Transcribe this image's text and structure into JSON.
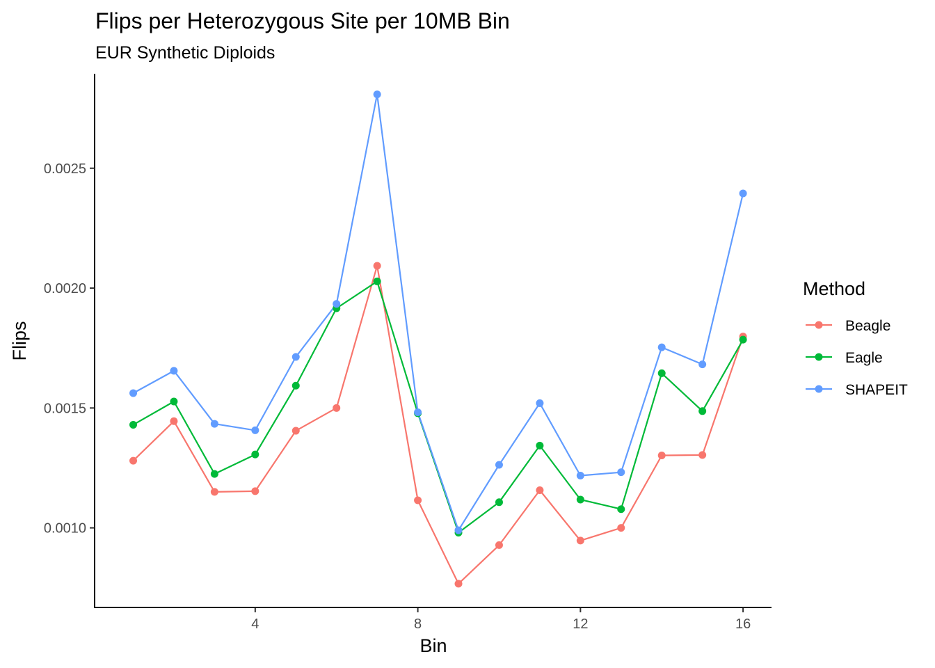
{
  "chart_data": {
    "type": "line",
    "title": "Flips per Heterozygous Site per 10MB Bin",
    "subtitle": "EUR Synthetic Diploids",
    "xlabel": "Bin",
    "ylabel": "Flips",
    "x": [
      1,
      2,
      3,
      4,
      5,
      6,
      7,
      8,
      9,
      10,
      11,
      12,
      13,
      14,
      15,
      16
    ],
    "xlim": [
      0.05,
      16.7
    ],
    "ylim": [
      0.000668,
      0.002894
    ],
    "x_ticks": [
      4,
      8,
      12,
      16
    ],
    "x_tick_labels": [
      "4",
      "8",
      "12",
      "16"
    ],
    "y_ticks": [
      0.001,
      0.0015,
      0.002,
      0.0025
    ],
    "y_tick_labels": [
      "0.0010",
      "0.0015",
      "0.0020",
      "0.0025"
    ],
    "grid": false,
    "legend": {
      "title": "Method",
      "position": "right"
    },
    "series": [
      {
        "name": "Beagle",
        "color": "#F8766D",
        "values": [
          0.00128,
          0.001445,
          0.00115,
          0.001153,
          0.001405,
          0.0015,
          0.002093,
          0.001115,
          0.000767,
          0.000928,
          0.001157,
          0.000947,
          0.001,
          0.001302,
          0.001304,
          0.001798
        ]
      },
      {
        "name": "Eagle",
        "color": "#00BA38",
        "values": [
          0.00143,
          0.001527,
          0.001225,
          0.001306,
          0.001593,
          0.001916,
          0.002028,
          0.001478,
          0.00098,
          0.001107,
          0.001343,
          0.001118,
          0.001078,
          0.001645,
          0.001487,
          0.001785
        ]
      },
      {
        "name": "SHAPEIT",
        "color": "#619CFF",
        "values": [
          0.001562,
          0.001655,
          0.001434,
          0.001407,
          0.001713,
          0.001934,
          0.002808,
          0.001482,
          0.00099,
          0.001263,
          0.00152,
          0.001218,
          0.001232,
          0.001753,
          0.001682,
          0.002395
        ]
      }
    ]
  }
}
